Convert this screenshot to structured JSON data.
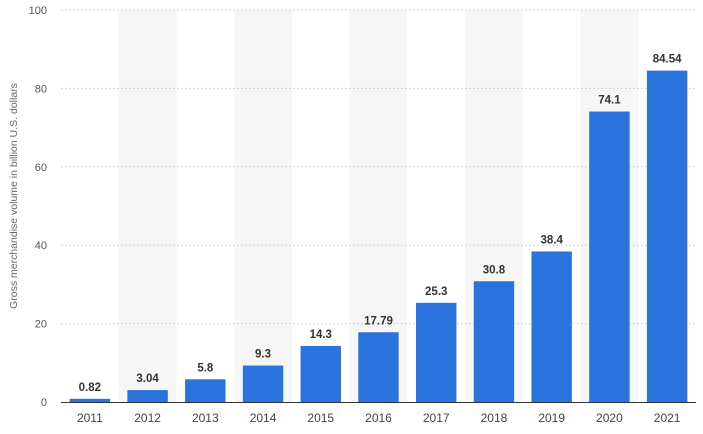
{
  "chart_data": {
    "type": "bar",
    "categories": [
      "2011",
      "2012",
      "2013",
      "2014",
      "2015",
      "2016",
      "2017",
      "2018",
      "2019",
      "2020",
      "2021"
    ],
    "values": [
      0.82,
      3.04,
      5.8,
      9.3,
      14.3,
      17.79,
      25.3,
      30.8,
      38.4,
      74.1,
      84.54
    ],
    "value_labels": [
      "0.82",
      "3.04",
      "5.8",
      "9.3",
      "14.3",
      "17.79",
      "25.3",
      "30.8",
      "38.4",
      "74.1",
      "84.54"
    ],
    "title": "",
    "xlabel": "",
    "ylabel": "Gross merchandise volume in billion U.S. dollars",
    "ylim": [
      0,
      100
    ],
    "yticks": [
      0,
      20,
      40,
      60,
      80,
      100
    ],
    "ytick_labels": [
      "0",
      "20",
      "40",
      "60",
      "80",
      "100"
    ],
    "grid": true,
    "legend": "none",
    "colors": {
      "bar": "#2a72dc",
      "band": "#f6f6f6",
      "grid": "#c8c8c8",
      "axis": "#333333"
    }
  }
}
